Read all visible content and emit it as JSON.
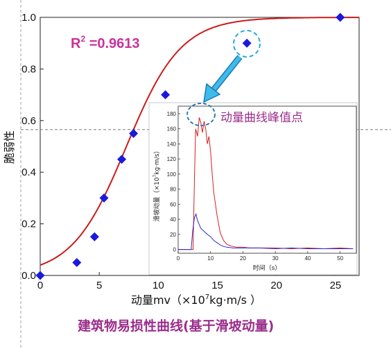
{
  "chart_data": [
    {
      "type": "scatter",
      "xlabel_prefix": "动量mv（×10",
      "xlabel_exp": "7",
      "xlabel_suffix": "kg·m/s ）",
      "ylabel": "脆弱性",
      "xlim": [
        0,
        27
      ],
      "ylim": [
        0,
        1
      ],
      "xticks": [
        0,
        5,
        10,
        15,
        20,
        25
      ],
      "yticks": [
        0.0,
        0.2,
        0.4,
        0.6,
        0.8,
        1.0
      ],
      "ytick_labels": [
        "0.0",
        "0.2",
        "0.4",
        "0.6",
        "0.8",
        "1.0"
      ],
      "x": [
        0,
        3.1,
        4.6,
        5.4,
        6.9,
        7.9,
        10.6,
        17.5,
        25.4
      ],
      "y": [
        0.0,
        0.05,
        0.15,
        0.3,
        0.45,
        0.55,
        0.7,
        0.9,
        1.0
      ],
      "fit_curve": {
        "center": 7.3,
        "scale": 2.3
      },
      "annotation_r2_main": "R",
      "annotation_r2_sup": "2",
      "annotation_r2_value": " =0.9613",
      "peak_annotation": "动量曲线峰值点",
      "reference_line_y": 0.565,
      "colors": {
        "points": "#1a1adc",
        "fit": "#cc1a1a",
        "annotation": "#9b2d8c",
        "arrow": "#29a8e0"
      }
    },
    {
      "type": "line",
      "xlabel_prefix": "时间（",
      "xlabel_unit": "s",
      "xlabel_suffix": "）",
      "ylabel_prefix": "滑坡动量（×10",
      "ylabel_exp": "7",
      "ylabel_suffix": "kg·m/s）",
      "xlim": [
        0,
        55
      ],
      "ylim": [
        -5,
        190
      ],
      "xticks": [
        0,
        10,
        20,
        30,
        40,
        50
      ],
      "yticks": [
        0,
        20,
        40,
        60,
        80,
        100,
        120,
        140,
        160,
        180
      ],
      "series": [
        {
          "color": "#d42020",
          "x": [
            0,
            4,
            4.6,
            5,
            5.4,
            6,
            6.5,
            7,
            7.5,
            8,
            8.5,
            9,
            9.5,
            10,
            10.5,
            11,
            12,
            13,
            14,
            15,
            16,
            17,
            18,
            20,
            22,
            25,
            30,
            35,
            40,
            45,
            50,
            54
          ],
          "y": [
            0,
            0,
            0,
            90,
            160,
            150,
            175,
            168,
            155,
            170,
            160,
            140,
            150,
            130,
            100,
            75,
            45,
            22,
            12,
            7,
            5,
            4,
            3,
            3,
            2,
            2,
            2,
            1,
            2,
            1,
            2,
            1
          ]
        },
        {
          "color": "#2a2ad0",
          "x": [
            0,
            4,
            4.5,
            5,
            5.5,
            6,
            6.5,
            7,
            8,
            9,
            10,
            11,
            12,
            13,
            14,
            15,
            17,
            20,
            25,
            30,
            35,
            40,
            45,
            50,
            54
          ],
          "y": [
            0,
            0,
            25,
            42,
            47,
            38,
            33,
            28,
            24,
            20,
            17,
            12,
            9,
            6,
            4,
            3,
            2,
            2,
            2,
            1,
            2,
            1,
            1,
            1,
            1
          ]
        }
      ]
    }
  ],
  "caption": "建筑物易损性曲线(基于滑坡动量)"
}
